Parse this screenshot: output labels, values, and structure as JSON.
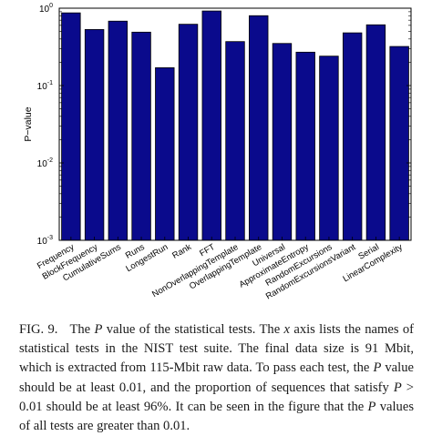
{
  "chart_data": {
    "type": "bar",
    "ylabel": "P−value",
    "yscale": "log",
    "ylim": [
      0.001,
      1
    ],
    "yticks": [
      {
        "base": "10",
        "exp": "0",
        "value": 1
      },
      {
        "base": "10",
        "exp": "-1",
        "value": 0.1
      },
      {
        "base": "10",
        "exp": "-2",
        "value": 0.01
      },
      {
        "base": "10",
        "exp": "-3",
        "value": 0.001
      }
    ],
    "bar_color": "#0a0a8c",
    "categories": [
      "Frequency",
      "BlockFrequency",
      "CumulativeSums",
      "Runs",
      "LongestRun",
      "Rank",
      "FFT",
      "NonOverlappingTemplate",
      "OverlappingTemplate",
      "Universal",
      "ApproximateEntropy",
      "RandomExcursions",
      "RandomExcursionsVariant",
      "Serial",
      "LinearComplexity"
    ],
    "values": [
      0.87,
      0.53,
      0.68,
      0.49,
      0.17,
      0.62,
      0.92,
      0.37,
      0.8,
      0.35,
      0.27,
      0.24,
      0.48,
      0.61,
      0.32
    ]
  },
  "caption": {
    "label": "FIG. 9.",
    "parts": [
      {
        "t": "The ",
        "i": false
      },
      {
        "t": "P",
        "i": true
      },
      {
        "t": " value of the statistical tests. The ",
        "i": false
      },
      {
        "t": "x",
        "i": true
      },
      {
        "t": " axis lists the names of statistical tests in the NIST test suite. The final data size is 91 Mbit, which is extracted from 115-Mbit raw data. To pass each test, the ",
        "i": false
      },
      {
        "t": "P",
        "i": true
      },
      {
        "t": " value should be at least 0.01, and the proportion of sequences that satisfy ",
        "i": false
      },
      {
        "t": "P",
        "i": true
      },
      {
        "t": " > 0.01 should be at least 96%. It can be seen in the figure that the ",
        "i": false
      },
      {
        "t": "P",
        "i": true
      },
      {
        "t": " values of all tests are greater than 0.01.",
        "i": false
      }
    ]
  }
}
